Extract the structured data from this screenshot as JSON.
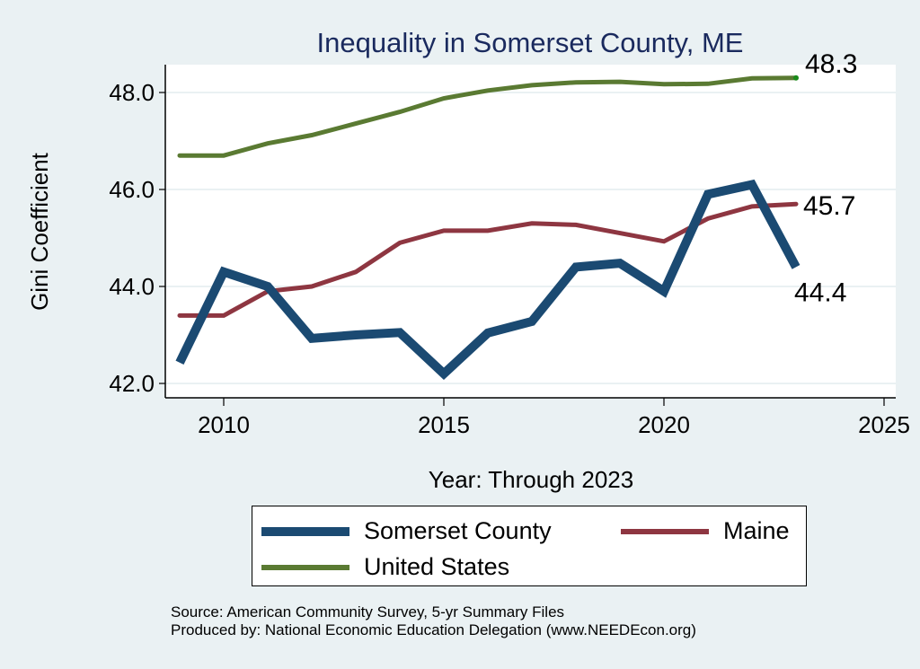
{
  "chart_data": {
    "type": "line",
    "title": "Inequality in Somerset County, ME",
    "xlabel": "Year: Through 2023",
    "ylabel": "Gini Coefficient",
    "xlim": [
      2008.3,
      2025.2
    ],
    "ylim": [
      41.7,
      48.6
    ],
    "x_ticks": [
      2010,
      2015,
      2020,
      2025
    ],
    "x_tick_labels": [
      "2010",
      "2015",
      "2020",
      "2025"
    ],
    "y_ticks": [
      42,
      44,
      46,
      48
    ],
    "y_tick_labels": [
      "42.0",
      "44.0",
      "46.0",
      "48.0"
    ],
    "grid": true,
    "x": [
      2009,
      2010,
      2011,
      2012,
      2013,
      2014,
      2015,
      2016,
      2017,
      2018,
      2019,
      2020,
      2021,
      2022,
      2023
    ],
    "series": [
      {
        "name": "Somerset County",
        "color": "#1b4a72",
        "values": [
          42.43,
          44.3,
          44.0,
          42.93,
          43.0,
          43.05,
          42.2,
          43.04,
          43.28,
          44.4,
          44.48,
          43.9,
          45.9,
          46.1,
          44.4
        ],
        "end_label": "44.4"
      },
      {
        "name": "Maine",
        "color": "#8e3641",
        "values": [
          43.4,
          43.4,
          43.9,
          44.0,
          44.3,
          44.9,
          45.15,
          45.15,
          45.3,
          45.27,
          45.1,
          44.93,
          45.4,
          45.65,
          45.7
        ],
        "end_label": "45.7"
      },
      {
        "name": "United States",
        "color": "#5a7a32",
        "values": [
          46.7,
          46.7,
          46.95,
          47.12,
          47.36,
          47.6,
          47.88,
          48.04,
          48.15,
          48.21,
          48.22,
          48.17,
          48.18,
          48.29,
          48.3
        ],
        "end_label": "48.3"
      }
    ],
    "legend_position": "bottom",
    "notes": [
      "Source: American Community Survey, 5-yr Summary Files",
      "Produced by: National Economic Education Delegation (www.NEEDEcon.org)"
    ]
  },
  "colors": {
    "background": "#eaf1f3",
    "plot_background": "#ffffff",
    "grid": "#eaf1f3",
    "title": "#1a2a5e",
    "us_end_marker": "#1a8a1a"
  }
}
